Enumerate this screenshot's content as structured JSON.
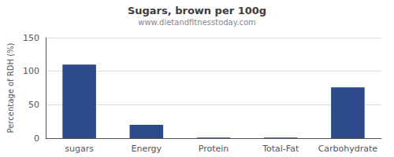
{
  "chart_data": {
    "type": "bar",
    "title": "Sugars, brown per 100g",
    "subtitle": "www.dietandfitnesstoday.com",
    "categories": [
      "sugars",
      "Energy",
      "Protein",
      "Total-Fat",
      "Carbohydrate"
    ],
    "values": [
      110,
      20,
      1,
      1,
      76
    ],
    "color": "#2d4a8a",
    "ylabel": "Percentage of RDH (%)",
    "ylim": [
      0,
      150
    ],
    "yticks": [
      0,
      50,
      100,
      150
    ],
    "grid": true
  }
}
